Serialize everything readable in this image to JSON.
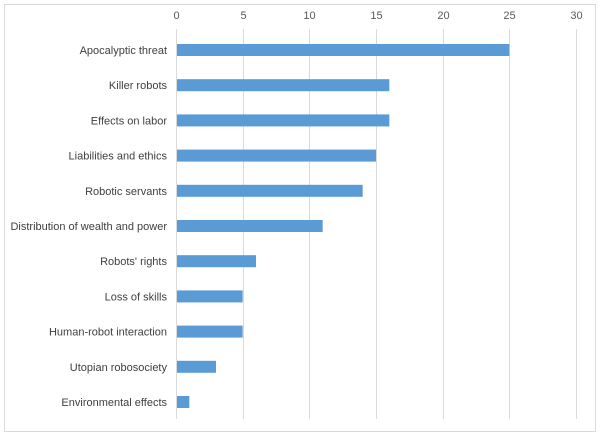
{
  "chart_data": {
    "type": "bar",
    "orientation": "horizontal",
    "title": "",
    "xlabel": "",
    "ylabel": "",
    "categories": [
      "Apocalyptic threat",
      "Killer robots",
      "Effects on labor",
      "Liabilities and ethics",
      "Robotic servants",
      "Distribution of wealth and power",
      "Robots' rights",
      "Loss of skills",
      "Human-robot interaction",
      "Utopian robosociety",
      "Environmental effects"
    ],
    "values": [
      25,
      16,
      16,
      15,
      14,
      11,
      6,
      5,
      5,
      3,
      1
    ],
    "xlim": [
      0,
      30
    ],
    "x_ticks": [
      0,
      5,
      10,
      15,
      20,
      25,
      30
    ],
    "x_axis_position": "top",
    "grid": true,
    "legend": "none",
    "bar_color": "#5b9bd5",
    "grid_color": "#d9d9d9"
  }
}
